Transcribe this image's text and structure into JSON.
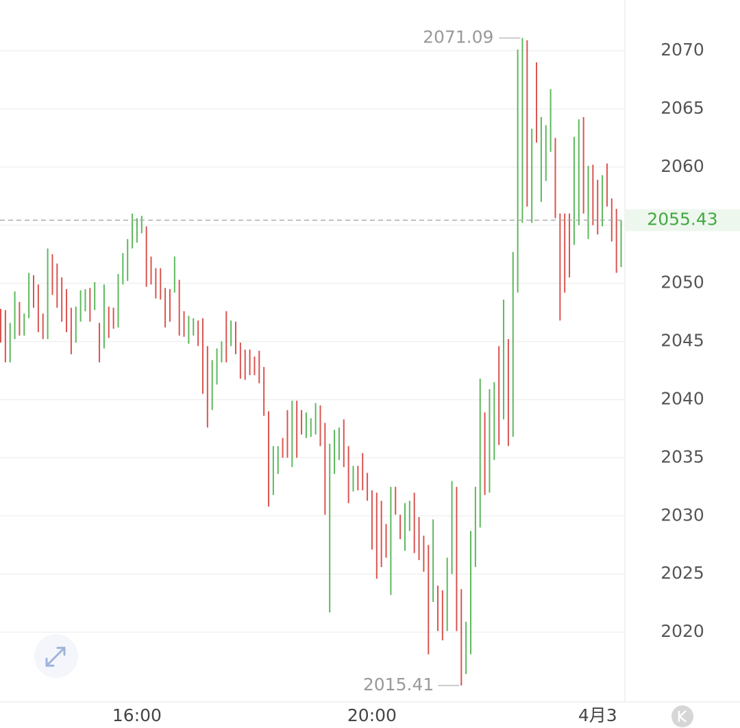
{
  "chart_data": {
    "type": "range_bars",
    "up_color": "#5cb85c",
    "down_color": "#d9534f",
    "last_price_color": "#43a843",
    "highs": [
      2047.8,
      2047.7,
      2046.6,
      2049.3,
      2048.4,
      2047.4,
      2050.9,
      2050.7,
      2049.9,
      2047.4,
      2053.0,
      2052.5,
      2051.7,
      2050.5,
      2049.5,
      2047.9,
      2048.0,
      2049.4,
      2049.5,
      2049.6,
      2050.1,
      2046.6,
      2049.9,
      2048.0,
      2047.9,
      2050.8,
      2052.6,
      2053.8,
      2056.0,
      2055.6,
      2055.8,
      2054.9,
      2052.3,
      2051.3,
      2051.3,
      2049.6,
      2049.5,
      2052.3,
      2050.3,
      2047.6,
      2047.2,
      2047.0,
      2046.8,
      2047.0,
      2044.6,
      2043.4,
      2044.4,
      2045.0,
      2047.6,
      2046.8,
      2046.7,
      2044.9,
      2044.3,
      2044.3,
      2043.7,
      2044.2,
      2042.8,
      2039.0,
      2036.0,
      2036.0,
      2036.7,
      2039.1,
      2039.9,
      2039.9,
      2039.1,
      2038.9,
      2038.4,
      2039.7,
      2039.5,
      2038.0,
      2036.2,
      2037.4,
      2037.6,
      2038.3,
      2036.0,
      2034.3,
      2034.3,
      2035.4,
      2033.7,
      2032.2,
      2032.0,
      2031.3,
      2029.3,
      2032.5,
      2032.5,
      2030.1,
      2031.1,
      2031.3,
      2032.0,
      2029.9,
      2028.3,
      2027.5,
      2029.7,
      2024.0,
      2023.6,
      2026.4,
      2033.0,
      2032.5,
      2023.7,
      2020.9,
      2028.7,
      2032.5,
      2041.8,
      2038.9,
      2040.9,
      2041.5,
      2044.6,
      2048.6,
      2045.2,
      2052.7,
      2070.1,
      2071.09,
      2070.9,
      2063.3,
      2069.0,
      2064.3,
      2063.6,
      2066.7,
      2062.5,
      2056.0,
      2056.0,
      2056.0,
      2062.6,
      2064.1,
      2064.3,
      2060.1,
      2060.2,
      2058.9,
      2059.3,
      2060.3,
      2057.3,
      2056.4,
      2055.4
    ],
    "lows": [
      2044.9,
      2043.2,
      2043.2,
      2045.2,
      2045.5,
      2045.5,
      2047.0,
      2047.9,
      2045.8,
      2045.2,
      2045.2,
      2049.0,
      2047.9,
      2046.7,
      2045.8,
      2043.9,
      2044.9,
      2046.7,
      2047.6,
      2046.7,
      2047.7,
      2043.2,
      2044.4,
      2045.3,
      2046.1,
      2046.2,
      2049.9,
      2050.2,
      2053.0,
      2053.5,
      2054.3,
      2049.7,
      2049.9,
      2048.7,
      2048.6,
      2046.2,
      2046.7,
      2049.2,
      2045.5,
      2045.4,
      2044.8,
      2045.5,
      2044.6,
      2040.5,
      2037.6,
      2039.1,
      2041.3,
      2043.2,
      2043.2,
      2044.6,
      2043.9,
      2041.8,
      2041.7,
      2042.1,
      2042.1,
      2041.4,
      2038.6,
      2030.8,
      2031.8,
      2033.6,
      2035.0,
      2035.0,
      2034.2,
      2035.0,
      2037.0,
      2036.7,
      2036.8,
      2037.0,
      2036.0,
      2030.1,
      2021.7,
      2033.6,
      2034.8,
      2034.2,
      2031.1,
      2032.1,
      2032.2,
      2032.2,
      2031.3,
      2027.1,
      2024.6,
      2025.6,
      2026.4,
      2023.2,
      2030.1,
      2028.0,
      2027.0,
      2028.7,
      2026.8,
      2026.2,
      2025.2,
      2018.1,
      2022.6,
      2020.1,
      2019.3,
      2020.1,
      2025.0,
      2020.1,
      2015.41,
      2016.4,
      2018.1,
      2025.6,
      2029.0,
      2031.8,
      2032.0,
      2034.8,
      2036.1,
      2038.3,
      2036.0,
      2036.8,
      2049.2,
      2055.2,
      2056.6,
      2055.2,
      2062.1,
      2057.0,
      2058.8,
      2061.3,
      2055.6,
      2046.8,
      2049.2,
      2050.5,
      2053.3,
      2055.0,
      2056.0,
      2053.8,
      2055.0,
      2054.2,
      2054.9,
      2056.6,
      2053.6,
      2050.9,
      2051.4
    ],
    "rising": [
      false,
      false,
      true,
      true,
      false,
      true,
      true,
      false,
      false,
      false,
      true,
      false,
      false,
      false,
      false,
      false,
      true,
      true,
      true,
      false,
      true,
      false,
      true,
      false,
      false,
      true,
      true,
      true,
      true,
      true,
      true,
      false,
      false,
      false,
      false,
      false,
      false,
      true,
      false,
      false,
      true,
      true,
      false,
      false,
      false,
      true,
      true,
      true,
      false,
      true,
      false,
      false,
      false,
      false,
      false,
      false,
      false,
      false,
      true,
      true,
      false,
      false,
      true,
      false,
      false,
      true,
      true,
      true,
      false,
      false,
      true,
      true,
      true,
      false,
      false,
      true,
      false,
      false,
      false,
      false,
      false,
      false,
      false,
      true,
      false,
      false,
      true,
      true,
      false,
      false,
      false,
      false,
      true,
      false,
      false,
      true,
      true,
      false,
      false,
      true,
      true,
      true,
      true,
      false,
      true,
      true,
      false,
      true,
      false,
      true,
      true,
      true,
      false,
      true,
      false,
      true,
      true,
      true,
      false,
      false,
      false,
      false,
      true,
      true,
      false,
      true,
      false,
      false,
      true,
      false,
      false,
      false,
      true
    ],
    "high_marker": 2071.09,
    "low_marker": 2015.41,
    "last_price": 2055.43,
    "ylim": [
      2014.0,
      2074.36
    ],
    "yticks": [
      2020,
      2025,
      2030,
      2035,
      2040,
      2045,
      2050,
      2055,
      2060,
      2065,
      2070
    ],
    "xticks": [
      {
        "value": 29,
        "label": "16:00"
      },
      {
        "value": 79,
        "label": "20:00"
      },
      {
        "value": 127,
        "label": "4月3"
      }
    ],
    "grid": true
  }
}
